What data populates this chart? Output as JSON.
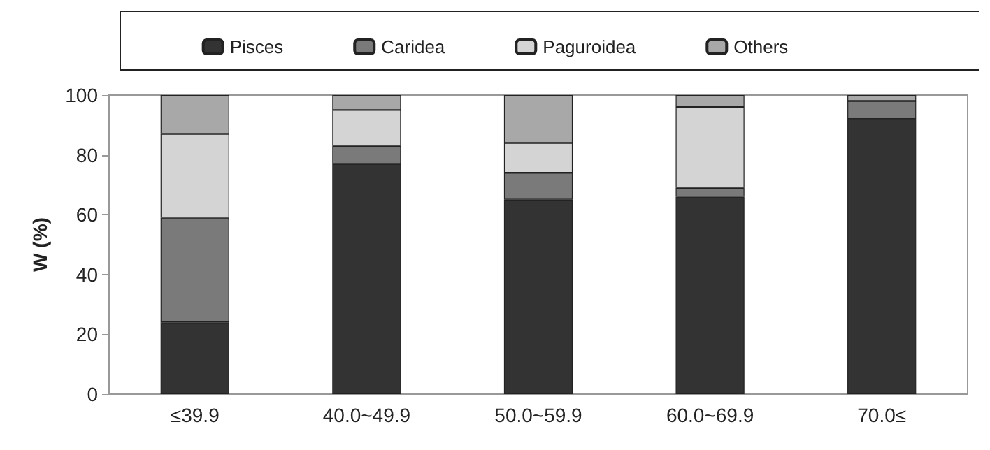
{
  "chart_data": {
    "type": "bar",
    "stacked": true,
    "ylabel": "W (%)",
    "categories": [
      "≤39.9",
      "40.0~49.9",
      "50.0~59.9",
      "60.0~69.9",
      "70.0≤"
    ],
    "series": [
      {
        "name": "Pisces",
        "color": "#333333",
        "values": [
          24,
          77,
          65,
          66,
          92
        ]
      },
      {
        "name": "Caridea",
        "color": "#7a7a7a",
        "values": [
          35,
          6,
          9,
          3,
          6
        ]
      },
      {
        "name": "Paguroidea",
        "color": "#d4d4d4",
        "values": [
          28,
          12,
          10,
          27,
          0
        ]
      },
      {
        "name": "Others",
        "color": "#a8a8a8",
        "values": [
          13,
          5,
          16,
          4,
          2
        ]
      }
    ],
    "ylim": [
      0,
      100
    ],
    "yticks": [
      0,
      20,
      40,
      60,
      80,
      100
    ],
    "grid": false,
    "legend": "top"
  }
}
